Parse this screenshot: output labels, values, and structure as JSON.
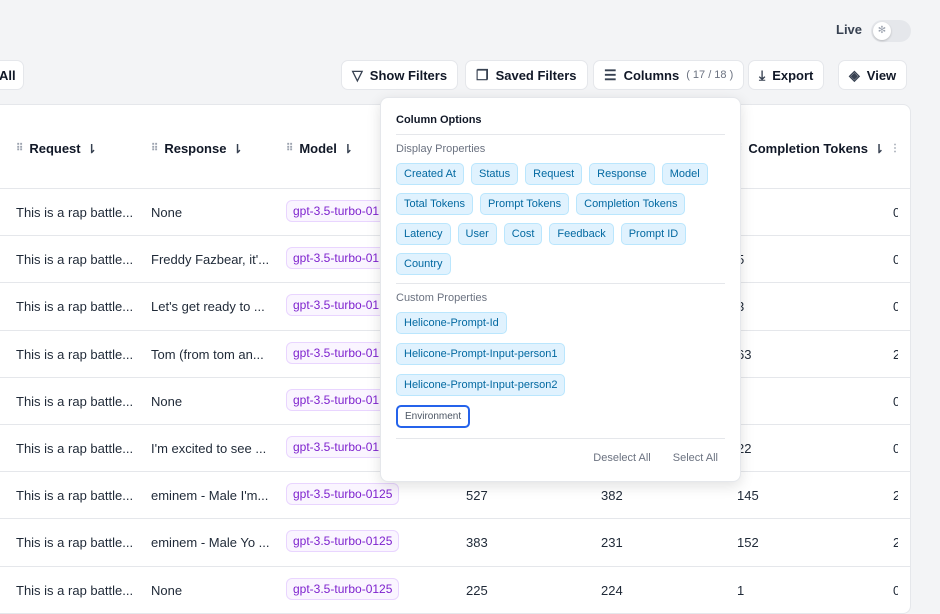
{
  "header": {
    "live_label": "Live",
    "all_label": "All"
  },
  "toolbar": {
    "show_filters": "Show Filters",
    "saved_filters": "Saved Filters",
    "columns": "Columns",
    "columns_count": "( 17 / 18 )",
    "export": "Export",
    "view": "View"
  },
  "table": {
    "headers": [
      "Request",
      "Response",
      "Model",
      "Completion Tokens"
    ],
    "rows": [
      {
        "request": "This is a rap battle...",
        "response": "None",
        "model": "gpt-3.5-turbo-01",
        "completion": "",
        "last": "0"
      },
      {
        "request": "This is a rap battle...",
        "response": "Freddy Fazbear, it'...",
        "model": "gpt-3.5-turbo-01",
        "completion": "5",
        "last": "0"
      },
      {
        "request": "This is a rap battle...",
        "response": "Let's get ready to ...",
        "model": "gpt-3.5-turbo-01",
        "completion": "3",
        "last": "0"
      },
      {
        "request": "This is a rap battle...",
        "response": "Tom (from tom an...",
        "model": "gpt-3.5-turbo-01",
        "completion": "63",
        "last": "2"
      },
      {
        "request": "This is a rap battle...",
        "response": "None",
        "model": "gpt-3.5-turbo-01",
        "completion": "",
        "last": "0"
      },
      {
        "request": "This is a rap battle...",
        "response": "I'm excited to see ...",
        "model": "gpt-3.5-turbo-01",
        "completion": "22",
        "last": "0"
      },
      {
        "request": "This is a rap battle...",
        "response": "eminem - Male I'm...",
        "model": "gpt-3.5-turbo-0125",
        "total": "527",
        "prompt": "382",
        "completion": "145",
        "last": "2"
      },
      {
        "request": "This is a rap battle...",
        "response": "eminem - Male Yo ...",
        "model": "gpt-3.5-turbo-0125",
        "total": "383",
        "prompt": "231",
        "completion": "152",
        "last": "2"
      },
      {
        "request": "This is a rap battle...",
        "response": "None",
        "model": "gpt-3.5-turbo-0125",
        "total": "225",
        "prompt": "224",
        "completion": "1",
        "last": "0"
      }
    ]
  },
  "popover": {
    "title": "Column Options",
    "display_label": "Display Properties",
    "display": [
      "Created At",
      "Status",
      "Request",
      "Response",
      "Model",
      "Total Tokens",
      "Prompt Tokens",
      "Completion Tokens",
      "Latency",
      "User",
      "Cost",
      "Feedback",
      "Prompt ID",
      "Country"
    ],
    "custom_label": "Custom Properties",
    "custom": [
      {
        "label": "Helicone-Prompt-Id",
        "selected": true
      },
      {
        "label": "Helicone-Prompt-Input-person1",
        "selected": true
      },
      {
        "label": "Helicone-Prompt-Input-person2",
        "selected": true
      },
      {
        "label": "Environment",
        "selected": false
      }
    ],
    "deselect_all": "Deselect All",
    "select_all": "Select All"
  }
}
